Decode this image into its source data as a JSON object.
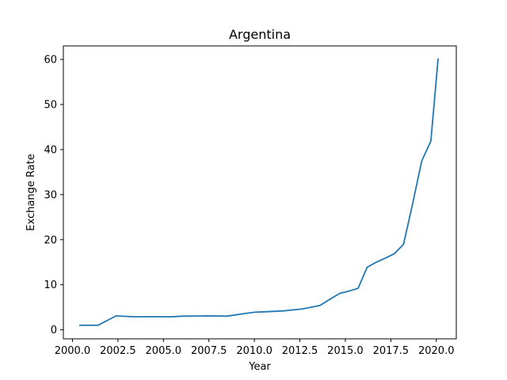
{
  "chart_data": {
    "type": "line",
    "title": "Argentina",
    "xlabel": "Year",
    "ylabel": "Exchange Rate",
    "xlim": [
      1999.5,
      2021.1
    ],
    "ylim": [
      -2.0,
      63.0
    ],
    "x_ticks": [
      2000.0,
      2002.5,
      2005.0,
      2007.5,
      2010.0,
      2012.5,
      2015.0,
      2017.5,
      2020.0
    ],
    "x_tick_labels": [
      "2000.0",
      "2002.5",
      "2005.0",
      "2007.5",
      "2010.0",
      "2012.5",
      "2015.0",
      "2017.5",
      "2020.0"
    ],
    "y_ticks": [
      0,
      10,
      20,
      30,
      40,
      50,
      60
    ],
    "y_tick_labels": [
      "0",
      "10",
      "20",
      "30",
      "40",
      "50",
      "60"
    ],
    "grid": false,
    "series": [
      {
        "color": "#1f77b4",
        "x": [
          2000.4,
          2001.4,
          2002.4,
          2003.4,
          2004.5,
          2005.5,
          2006.0,
          2006.5,
          2007.5,
          2008.5,
          2009.6,
          2010.0,
          2010.6,
          2011.6,
          2012.6,
          2013.6,
          2014.2,
          2014.7,
          2015.2,
          2015.7,
          2016.2,
          2016.7,
          2017.2,
          2017.7,
          2018.2,
          2018.7,
          2019.2,
          2019.7,
          2020.1
        ],
        "y": [
          1.0,
          1.0,
          3.1,
          2.9,
          2.9,
          2.9,
          3.05,
          3.05,
          3.1,
          3.05,
          3.7,
          3.9,
          4.0,
          4.2,
          4.6,
          5.4,
          6.9,
          8.1,
          8.6,
          9.2,
          13.9,
          15.0,
          15.9,
          16.9,
          19.0,
          28.0,
          37.5,
          41.9,
          60.1
        ]
      }
    ]
  }
}
